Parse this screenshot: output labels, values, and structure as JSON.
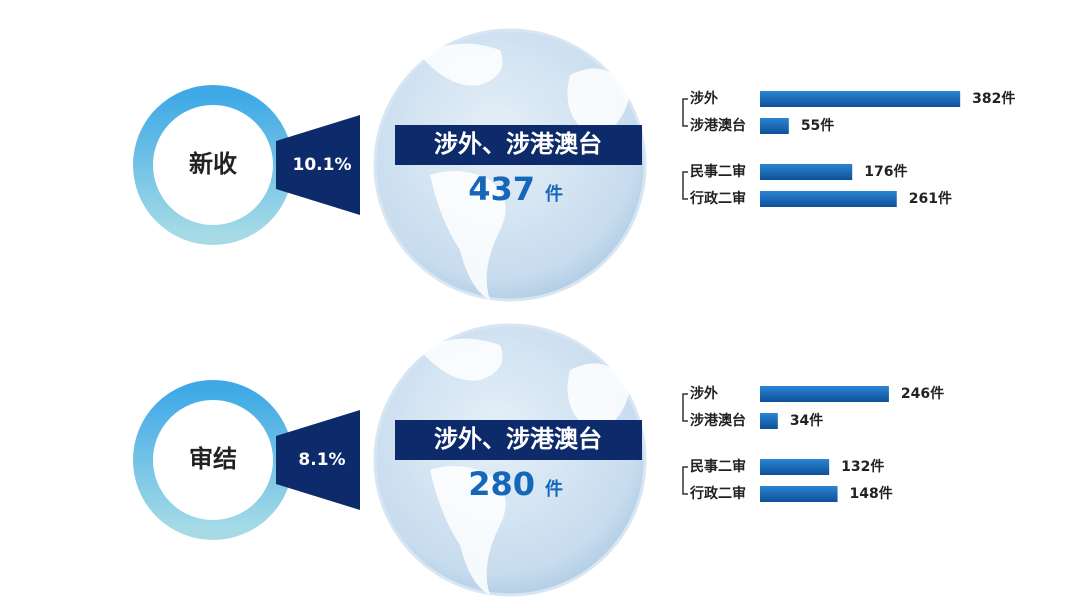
{
  "chart_data": [
    {
      "type": "bar",
      "label": "新收",
      "share": 10.1,
      "share_label": "10.1%",
      "banner": "涉外、涉港澳台",
      "total": 437,
      "total_unit": "件",
      "categories": [
        "涉外",
        "涉港澳台",
        "民事二审",
        "行政二审"
      ],
      "values": [
        382,
        55,
        176,
        261
      ],
      "value_labels": [
        "382件",
        "55件",
        "176件",
        "261件"
      ],
      "color": "#1667b9"
    },
    {
      "type": "bar",
      "label": "审结",
      "share": 8.1,
      "share_label": "8.1%",
      "banner": "涉外、涉港澳台",
      "total": 280,
      "total_unit": "件",
      "categories": [
        "涉外",
        "涉港澳台",
        "民事二审",
        "行政二审"
      ],
      "values": [
        246,
        34,
        132,
        148
      ],
      "value_labels": [
        "246件",
        "34件",
        "132件",
        "148件"
      ],
      "color": "#1667b9"
    }
  ]
}
